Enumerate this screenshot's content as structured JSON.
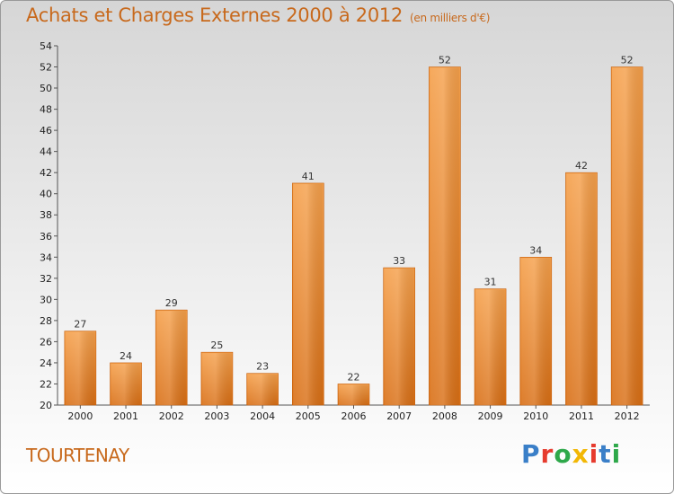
{
  "header": {
    "title": "Achats et Charges Externes 2000 à 2012",
    "unit": "(en milliers d'€)"
  },
  "footer": {
    "commune": "TOURTENAY",
    "logo": {
      "letters": [
        "P",
        "r",
        "o",
        "x",
        "i",
        "t",
        "i"
      ],
      "colors": [
        "#3a7fc8",
        "#e63b2e",
        "#2ea84a",
        "#f2b705",
        "#e63b2e",
        "#3a7fc8",
        "#2ea84a"
      ]
    }
  },
  "colors": {
    "bar_top": "#f5a04b",
    "bar_bottom": "#d96f15",
    "bar_edge": "#c45e0c",
    "accent": "#c8691c"
  },
  "chart_data": {
    "type": "bar",
    "title": "Achats et Charges Externes 2000 à 2012",
    "subtitle": "(en milliers d'€)",
    "categories": [
      "2000",
      "2001",
      "2002",
      "2003",
      "2004",
      "2005",
      "2006",
      "2007",
      "2008",
      "2009",
      "2010",
      "2011",
      "2012"
    ],
    "values": [
      27,
      24,
      29,
      25,
      23,
      41,
      22,
      33,
      52,
      31,
      34,
      42,
      52
    ],
    "ylim": [
      20,
      54
    ],
    "yticks": [
      20,
      22,
      24,
      26,
      28,
      30,
      32,
      34,
      36,
      38,
      40,
      42,
      44,
      46,
      48,
      50,
      52,
      54
    ],
    "grid": false,
    "data_labels": true
  }
}
